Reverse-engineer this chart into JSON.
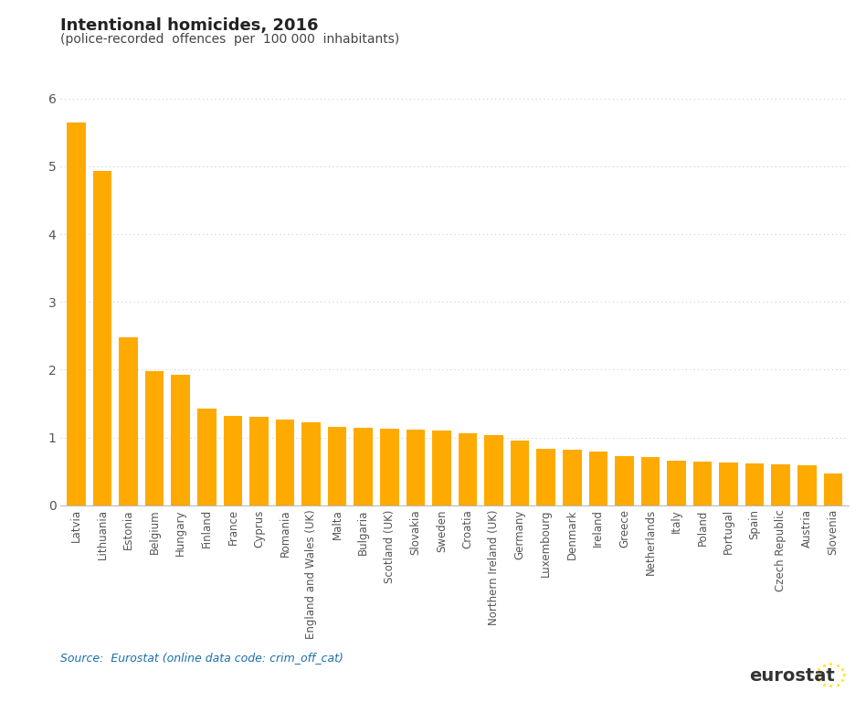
{
  "title": "Intentional homicides, 2016",
  "subtitle": "(police-recorded  offences  per  100 000  inhabitants)",
  "bar_color": "#FFAA00",
  "background_color": "#ffffff",
  "source_text": "Source:  Eurostat (online data code: crim_off_cat)",
  "categories": [
    "Latvia",
    "Lithuania",
    "Estonia",
    "Belgium",
    "Hungary",
    "Finland",
    "France",
    "Cyprus",
    "Romania",
    "England and Wales (UK)",
    "Malta",
    "Bulgaria",
    "Scotland (UK)",
    "Slovakia",
    "Sweden",
    "Croatia",
    "Northern Ireland (UK)",
    "Germany",
    "Luxembourg",
    "Denmark",
    "Ireland",
    "Greece",
    "Netherlands",
    "Italy",
    "Poland",
    "Portugal",
    "Spain",
    "Czech Republic",
    "Austria",
    "Slovenia"
  ],
  "values": [
    5.65,
    4.93,
    2.48,
    1.98,
    1.92,
    1.43,
    1.32,
    1.3,
    1.26,
    1.22,
    1.16,
    1.14,
    1.13,
    1.12,
    1.1,
    1.06,
    1.04,
    0.95,
    0.84,
    0.82,
    0.79,
    0.73,
    0.71,
    0.66,
    0.65,
    0.63,
    0.62,
    0.61,
    0.59,
    0.47
  ],
  "ylim": [
    0,
    6
  ],
  "yticks": [
    0,
    1,
    2,
    3,
    4,
    5,
    6
  ],
  "grid_color": "#cccccc",
  "tick_color": "#555555",
  "title_fontsize": 13,
  "subtitle_fontsize": 10,
  "axis_fontsize": 10,
  "source_fontsize": 9,
  "xlabel_fontsize": 8.5
}
